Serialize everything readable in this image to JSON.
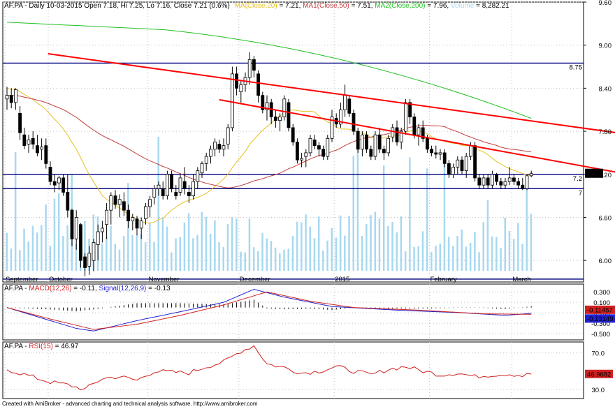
{
  "header": {
    "prefix": "AF.PA - Daily 10-03-2015 Open 7.18, Hi 7.25, Lo 7.16, Close 7.21 (0.6%)",
    "ma20_label": "MA(Close,20)",
    "ma20_value": " = 7.21, ",
    "ma50_label": "MA1(Close,50)",
    "ma50_value": " = 7.51, ",
    "ma200_label": "MA2(Close,200)",
    "ma200_value": " = 7.96, ",
    "vol_label": "Volume",
    "vol_value": " = 8,282.21"
  },
  "macd_header": {
    "prefix": "AF.PA - ",
    "macd_label": "MACD(12,26)",
    "macd_value": " = -0.11, ",
    "signal_label": "Signal(12,26,9)",
    "signal_value": " = -0.13"
  },
  "rsi_header": {
    "prefix": "AF.PA - ",
    "rsi_label": "RSI(15)",
    "rsi_value": " = 46.97"
  },
  "footer": "Created with AmiBroker - advanced charting and technical analysis software. http://www.amibroker.com",
  "colors": {
    "ma20": "#e8c020",
    "ma50": "#c04040",
    "ma200": "#20c020",
    "volume": "#a8d8f0",
    "hline": "#000080",
    "trend": "#ff0000",
    "macd": "#2020d0",
    "signal": "#d02020",
    "rsi": "#d02020",
    "grid": "#c0c0c0"
  },
  "chart_data": [
    {
      "type": "candlestick",
      "title": "AF.PA - Daily",
      "x_labels": [
        "September",
        "October",
        "November",
        "December",
        "2015",
        "February",
        "March"
      ],
      "y_ticks": [
        6.0,
        6.6,
        7.2,
        7.8,
        8.4,
        9.0,
        9.6
      ],
      "ylim": [
        5.7,
        9.6
      ],
      "last_close": 7.21,
      "last_close_label": "7.21",
      "horizontal_lines": [
        {
          "value": 8.75,
          "label": "8.75"
        },
        {
          "value": 7.2,
          "label": "7.2"
        },
        {
          "value": 7.0,
          "label": "7"
        },
        {
          "value": 5.74,
          "label": ""
        }
      ],
      "trendlines": [
        {
          "from": [
            9.5,
            8.88
          ],
          "to": [
            162,
            7.6
          ]
        },
        {
          "from": [
            49,
            8.24
          ],
          "to": [
            166,
            6.95
          ]
        }
      ],
      "ohlc": [
        [
          0,
          8.25,
          8.42,
          8.1,
          8.3
        ],
        [
          1,
          8.3,
          8.4,
          8.12,
          8.2
        ],
        [
          2,
          8.2,
          8.4,
          8.1,
          8.38
        ],
        [
          3,
          8.05,
          8.15,
          7.68,
          7.78
        ],
        [
          4,
          7.75,
          7.85,
          7.55,
          7.6
        ],
        [
          5,
          7.62,
          7.75,
          7.5,
          7.68
        ],
        [
          6,
          7.7,
          7.8,
          7.55,
          7.62
        ],
        [
          7,
          7.6,
          7.75,
          7.45,
          7.5
        ],
        [
          8,
          7.55,
          7.7,
          7.4,
          7.58
        ],
        [
          9,
          7.6,
          7.7,
          7.28,
          7.35
        ],
        [
          10,
          7.3,
          7.38,
          7.05,
          7.1
        ],
        [
          11,
          7.1,
          7.2,
          6.95,
          7.05
        ],
        [
          12,
          7.08,
          7.18,
          6.98,
          7.15
        ],
        [
          13,
          7.15,
          7.2,
          6.9,
          6.95
        ],
        [
          14,
          6.95,
          7.2,
          6.6,
          6.7
        ],
        [
          15,
          6.7,
          6.72,
          6.2,
          6.3
        ],
        [
          16,
          6.3,
          6.7,
          6.15,
          6.6
        ],
        [
          17,
          6.5,
          6.52,
          5.9,
          6.0
        ],
        [
          18,
          6.05,
          6.1,
          5.78,
          5.9
        ],
        [
          19,
          5.92,
          6.2,
          5.8,
          6.1
        ],
        [
          20,
          6.0,
          6.3,
          5.85,
          6.25
        ],
        [
          21,
          6.22,
          6.5,
          6.0,
          6.4
        ],
        [
          22,
          6.4,
          6.55,
          6.25,
          6.45
        ],
        [
          23,
          6.5,
          6.8,
          6.3,
          6.7
        ],
        [
          24,
          6.7,
          6.95,
          6.5,
          6.9
        ],
        [
          25,
          6.9,
          6.98,
          6.72,
          6.78
        ],
        [
          26,
          6.78,
          6.92,
          6.6,
          6.85
        ],
        [
          27,
          6.82,
          6.95,
          6.62,
          6.7
        ],
        [
          28,
          6.7,
          6.78,
          6.45,
          6.55
        ],
        [
          29,
          6.55,
          6.65,
          6.42,
          6.6
        ],
        [
          30,
          6.58,
          6.62,
          6.35,
          6.45
        ],
        [
          31,
          6.45,
          6.6,
          6.3,
          6.55
        ],
        [
          32,
          6.58,
          6.8,
          6.5,
          6.75
        ],
        [
          33,
          6.75,
          6.9,
          6.6,
          6.85
        ],
        [
          34,
          6.88,
          7.05,
          6.78,
          7.0
        ],
        [
          35,
          7.0,
          7.1,
          6.9,
          7.05
        ],
        [
          36,
          7.0,
          7.1,
          6.85,
          6.9
        ],
        [
          37,
          6.9,
          7.25,
          6.85,
          7.2
        ],
        [
          38,
          7.2,
          7.25,
          6.95,
          7.0
        ],
        [
          39,
          6.95,
          7.05,
          6.85,
          6.9
        ],
        [
          40,
          6.95,
          7.2,
          6.9,
          7.15
        ],
        [
          41,
          7.1,
          7.3,
          6.92,
          7.0
        ],
        [
          42,
          6.95,
          7.05,
          6.8,
          6.9
        ],
        [
          43,
          6.9,
          7.2,
          6.85,
          7.1
        ],
        [
          44,
          7.1,
          7.3,
          7.0,
          7.25
        ],
        [
          45,
          7.22,
          7.38,
          7.15,
          7.35
        ],
        [
          46,
          7.35,
          7.5,
          7.25,
          7.45
        ],
        [
          47,
          7.45,
          7.6,
          7.35,
          7.55
        ],
        [
          48,
          7.55,
          7.7,
          7.45,
          7.65
        ],
        [
          49,
          7.62,
          7.68,
          7.5,
          7.55
        ],
        [
          50,
          7.55,
          7.7,
          7.45,
          7.6
        ],
        [
          51,
          7.62,
          7.9,
          7.55,
          7.85
        ],
        [
          52,
          7.85,
          8.7,
          7.8,
          8.6
        ],
        [
          53,
          8.6,
          8.7,
          8.3,
          8.4
        ],
        [
          54,
          8.35,
          8.5,
          8.2,
          8.45
        ],
        [
          55,
          8.45,
          8.62,
          8.35,
          8.55
        ],
        [
          56,
          8.55,
          8.9,
          8.45,
          8.8
        ],
        [
          57,
          8.8,
          8.85,
          8.55,
          8.65
        ],
        [
          58,
          8.6,
          8.65,
          8.2,
          8.3
        ],
        [
          59,
          8.3,
          8.35,
          8.05,
          8.1
        ],
        [
          60,
          8.1,
          8.3,
          7.95,
          8.2
        ],
        [
          61,
          8.2,
          8.25,
          7.9,
          8.0
        ],
        [
          62,
          8.0,
          8.1,
          7.85,
          7.95
        ],
        [
          63,
          7.95,
          8.05,
          7.8,
          8.0
        ],
        [
          64,
          8.0,
          8.3,
          7.95,
          8.25
        ],
        [
          65,
          8.2,
          8.25,
          7.8,
          7.85
        ],
        [
          66,
          7.85,
          7.9,
          7.6,
          7.65
        ],
        [
          67,
          7.65,
          7.7,
          7.35,
          7.4
        ],
        [
          68,
          7.4,
          7.5,
          7.3,
          7.42
        ],
        [
          69,
          7.45,
          7.55,
          7.3,
          7.5
        ],
        [
          70,
          7.5,
          7.75,
          7.45,
          7.7
        ],
        [
          71,
          7.68,
          7.75,
          7.55,
          7.6
        ],
        [
          72,
          7.6,
          7.65,
          7.45,
          7.55
        ],
        [
          73,
          7.55,
          7.6,
          7.4,
          7.45
        ],
        [
          74,
          7.45,
          7.75,
          7.4,
          7.7
        ],
        [
          75,
          7.7,
          8.1,
          7.65,
          8.0
        ],
        [
          76,
          7.98,
          8.05,
          7.85,
          7.9
        ],
        [
          77,
          7.9,
          8.2,
          7.85,
          8.1
        ],
        [
          78,
          8.1,
          8.45,
          8.0,
          8.3
        ],
        [
          79,
          8.25,
          8.3,
          8.0,
          8.05
        ],
        [
          80,
          8.05,
          8.1,
          7.75,
          7.8
        ],
        [
          81,
          7.8,
          7.85,
          7.5,
          7.55
        ],
        [
          82,
          7.55,
          7.8,
          7.45,
          7.75
        ],
        [
          83,
          7.75,
          7.8,
          7.5,
          7.55
        ],
        [
          84,
          7.55,
          7.6,
          7.4,
          7.45
        ],
        [
          85,
          7.45,
          7.8,
          7.4,
          7.75
        ],
        [
          86,
          7.75,
          7.85,
          7.5,
          7.55
        ],
        [
          87,
          7.55,
          7.6,
          7.4,
          7.5
        ],
        [
          88,
          7.5,
          7.75,
          7.45,
          7.7
        ],
        [
          89,
          7.72,
          7.9,
          7.65,
          7.85
        ],
        [
          90,
          7.85,
          7.95,
          7.6,
          7.65
        ],
        [
          91,
          7.65,
          7.85,
          7.55,
          7.8
        ],
        [
          92,
          7.8,
          8.25,
          7.75,
          8.2
        ],
        [
          93,
          8.2,
          8.25,
          7.9,
          8.0
        ],
        [
          94,
          8.0,
          8.05,
          7.7,
          7.75
        ],
        [
          95,
          7.75,
          7.9,
          7.6,
          7.85
        ],
        [
          96,
          7.85,
          7.95,
          7.65,
          7.7
        ],
        [
          97,
          7.7,
          7.75,
          7.5,
          7.55
        ],
        [
          98,
          7.55,
          7.6,
          7.45,
          7.5
        ],
        [
          99,
          7.5,
          7.6,
          7.42,
          7.48
        ],
        [
          100,
          7.48,
          7.55,
          7.4,
          7.5
        ],
        [
          101,
          7.5,
          7.55,
          7.3,
          7.35
        ],
        [
          102,
          7.35,
          7.4,
          7.15,
          7.2
        ],
        [
          103,
          7.2,
          7.35,
          7.15,
          7.3
        ],
        [
          104,
          7.3,
          7.45,
          7.2,
          7.4
        ],
        [
          105,
          7.4,
          7.45,
          7.2,
          7.25
        ],
        [
          106,
          7.25,
          7.5,
          7.15,
          7.45
        ],
        [
          107,
          7.45,
          7.65,
          7.4,
          7.6
        ],
        [
          108,
          7.6,
          7.65,
          7.1,
          7.15
        ],
        [
          109,
          7.15,
          7.2,
          7.0,
          7.05
        ],
        [
          110,
          7.05,
          7.2,
          7.0,
          7.15
        ],
        [
          111,
          7.15,
          7.2,
          7.0,
          7.05
        ],
        [
          112,
          7.05,
          7.25,
          7.0,
          7.2
        ],
        [
          113,
          7.2,
          7.22,
          7.05,
          7.1
        ],
        [
          114,
          7.1,
          7.15,
          7.0,
          7.05
        ],
        [
          115,
          7.05,
          7.15,
          7.0,
          7.1
        ],
        [
          116,
          7.1,
          7.3,
          7.05,
          7.15
        ],
        [
          117,
          7.15,
          7.2,
          7.05,
          7.1
        ],
        [
          118,
          7.1,
          7.15,
          7.0,
          7.05
        ],
        [
          119,
          7.05,
          7.15,
          6.98,
          7.0
        ],
        [
          120,
          7.0,
          7.2,
          6.98,
          7.18
        ],
        [
          121,
          7.18,
          7.25,
          7.16,
          7.21
        ]
      ],
      "series": [
        {
          "name": "MA(Close,20)",
          "last": 7.21
        },
        {
          "name": "MA1(Close,50)",
          "last": 7.51
        },
        {
          "name": "MA2(Close,200)",
          "last": 7.96
        },
        {
          "name": "Volume",
          "last": 8282.21
        }
      ]
    },
    {
      "type": "line",
      "title": "MACD(12,26)",
      "y_ticks": [
        0.3,
        0.1,
        -0.1,
        -0.3,
        -0.5
      ],
      "ylim": [
        -0.62,
        0.45
      ],
      "last_values": [
        {
          "name": "MACD(12,26)",
          "value": -0.11,
          "label": "-0.11457"
        },
        {
          "name": "Signal(12,26,9)",
          "value": -0.13,
          "label": "-0.13149"
        }
      ],
      "macd_anchors": [
        [
          0,
          0.0
        ],
        [
          8,
          -0.2
        ],
        [
          16,
          -0.4
        ],
        [
          20,
          -0.45
        ],
        [
          30,
          -0.25
        ],
        [
          40,
          -0.08
        ],
        [
          50,
          0.1
        ],
        [
          57,
          0.35
        ],
        [
          64,
          0.2
        ],
        [
          75,
          0.02
        ],
        [
          90,
          -0.05
        ],
        [
          105,
          -0.1
        ],
        [
          115,
          -0.15
        ],
        [
          121,
          -0.11
        ]
      ],
      "signal_anchors": [
        [
          0,
          0.0
        ],
        [
          10,
          -0.22
        ],
        [
          20,
          -0.42
        ],
        [
          30,
          -0.32
        ],
        [
          40,
          -0.15
        ],
        [
          50,
          0.05
        ],
        [
          60,
          0.3
        ],
        [
          70,
          0.12
        ],
        [
          80,
          0.0
        ],
        [
          95,
          -0.05
        ],
        [
          110,
          -0.12
        ],
        [
          121,
          -0.13
        ]
      ]
    },
    {
      "type": "line",
      "title": "RSI(15)",
      "y_ticks": [
        70,
        30
      ],
      "ylim": [
        20,
        82
      ],
      "last_value": {
        "name": "RSI(15)",
        "value": 46.97,
        "label": "46.9682"
      },
      "rsi_anchors": [
        [
          0,
          52
        ],
        [
          5,
          45
        ],
        [
          10,
          38
        ],
        [
          14,
          35
        ],
        [
          18,
          30
        ],
        [
          22,
          42
        ],
        [
          26,
          44
        ],
        [
          30,
          40
        ],
        [
          34,
          50
        ],
        [
          38,
          49
        ],
        [
          42,
          48
        ],
        [
          46,
          55
        ],
        [
          50,
          60
        ],
        [
          54,
          72
        ],
        [
          57,
          78
        ],
        [
          60,
          58
        ],
        [
          64,
          54
        ],
        [
          68,
          48
        ],
        [
          72,
          50
        ],
        [
          76,
          55
        ],
        [
          80,
          50
        ],
        [
          84,
          46
        ],
        [
          88,
          52
        ],
        [
          92,
          55
        ],
        [
          96,
          50
        ],
        [
          100,
          46
        ],
        [
          104,
          48
        ],
        [
          108,
          44
        ],
        [
          112,
          46
        ],
        [
          116,
          47
        ],
        [
          119,
          45
        ],
        [
          121,
          47
        ]
      ]
    }
  ]
}
